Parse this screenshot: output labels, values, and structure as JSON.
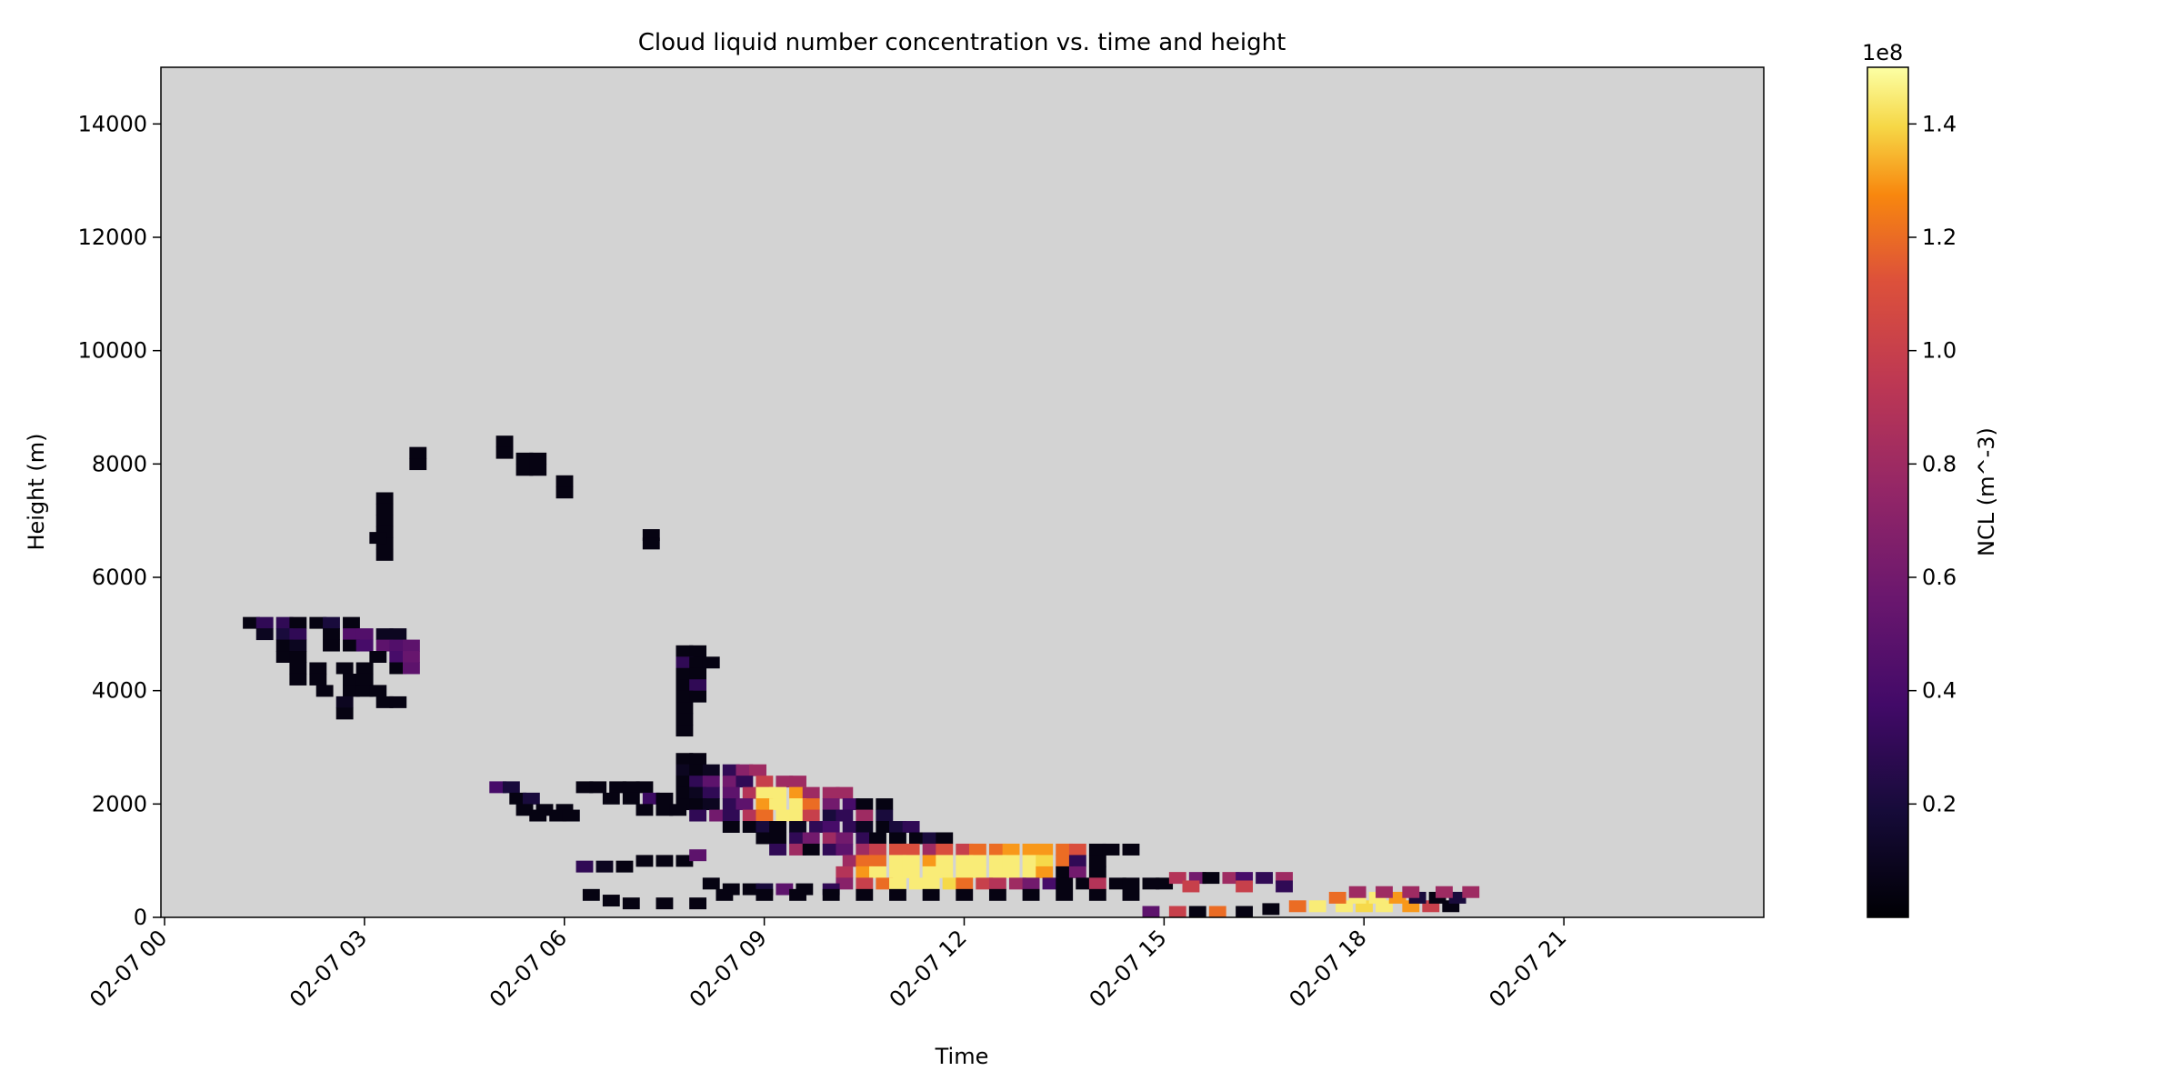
{
  "chart_data": {
    "type": "heatmap",
    "title": "Cloud liquid number concentration vs. time and height",
    "xlabel": "Time",
    "ylabel": "Height (m)",
    "x_range": [
      "02-07 00",
      "02-08 00"
    ],
    "x_ticks": [
      "02-07 00",
      "02-07 03",
      "02-07 06",
      "02-07 09",
      "02-07 12",
      "02-07 15",
      "02-07 18",
      "02-07 21"
    ],
    "ylim": [
      0,
      15000
    ],
    "y_ticks": [
      "0",
      "2000",
      "4000",
      "6000",
      "8000",
      "10000",
      "12000",
      "14000"
    ],
    "background_color": "#d3d3d3",
    "colormap": "inferno",
    "colorbar": {
      "label": "NCL (m^-3)",
      "offset_text": "1e8",
      "range": [
        0,
        1.5
      ],
      "ticks": [
        "0.2",
        "0.4",
        "0.6",
        "0.8",
        "1.0",
        "1.2",
        "1.4"
      ]
    },
    "cell_units": {
      "x": "hours since 02-07 00",
      "y": "m",
      "value": "1e8 m^-3"
    },
    "cells": [
      [
        1.3,
        5200,
        0.05
      ],
      [
        1.5,
        5200,
        0.3
      ],
      [
        1.8,
        5200,
        0.3
      ],
      [
        2.0,
        5200,
        0.05
      ],
      [
        2.3,
        5200,
        0.05
      ],
      [
        2.5,
        5200,
        0.2
      ],
      [
        2.8,
        5200,
        0.05
      ],
      [
        1.5,
        5000,
        0.1
      ],
      [
        1.8,
        5000,
        0.2
      ],
      [
        2.0,
        5000,
        0.3
      ],
      [
        2.5,
        5000,
        0.05
      ],
      [
        2.8,
        5000,
        0.45
      ],
      [
        3.0,
        5000,
        0.45
      ],
      [
        3.3,
        5000,
        0.1
      ],
      [
        3.5,
        5000,
        0.1
      ],
      [
        1.8,
        4800,
        0.05
      ],
      [
        2.0,
        4800,
        0.1
      ],
      [
        2.5,
        4800,
        0.05
      ],
      [
        2.8,
        4800,
        0.05
      ],
      [
        3.0,
        4800,
        0.4
      ],
      [
        3.3,
        4800,
        0.5
      ],
      [
        3.5,
        4800,
        0.45
      ],
      [
        3.7,
        4800,
        0.5
      ],
      [
        1.8,
        4600,
        0.05
      ],
      [
        2.0,
        4600,
        0.05
      ],
      [
        3.2,
        4600,
        0.05
      ],
      [
        3.5,
        4600,
        0.4
      ],
      [
        3.7,
        4600,
        0.55
      ],
      [
        2.0,
        4400,
        0.05
      ],
      [
        2.3,
        4400,
        0.05
      ],
      [
        2.7,
        4400,
        0.05
      ],
      [
        3.0,
        4400,
        0.05
      ],
      [
        3.5,
        4400,
        0.05
      ],
      [
        3.7,
        4400,
        0.5
      ],
      [
        2.0,
        4200,
        0.05
      ],
      [
        2.3,
        4200,
        0.05
      ],
      [
        2.8,
        4200,
        0.05
      ],
      [
        3.0,
        4200,
        0.05
      ],
      [
        2.4,
        4000,
        0.05
      ],
      [
        2.8,
        4000,
        0.05
      ],
      [
        3.0,
        4000,
        0.05
      ],
      [
        3.2,
        4000,
        0.05
      ],
      [
        2.7,
        3800,
        0.1
      ],
      [
        3.3,
        3800,
        0.05
      ],
      [
        3.5,
        3800,
        0.05
      ],
      [
        2.7,
        3600,
        0.05
      ],
      [
        3.8,
        8200,
        0.05
      ],
      [
        3.8,
        8000,
        0.05
      ],
      [
        5.1,
        8400,
        0.05
      ],
      [
        5.1,
        8200,
        0.05
      ],
      [
        5.4,
        8100,
        0.05
      ],
      [
        5.6,
        8100,
        0.05
      ],
      [
        5.4,
        7900,
        0.05
      ],
      [
        5.6,
        7900,
        0.05
      ],
      [
        6.0,
        7700,
        0.05
      ],
      [
        6.0,
        7500,
        0.05
      ],
      [
        3.3,
        7400,
        0.05
      ],
      [
        3.3,
        7200,
        0.05
      ],
      [
        3.3,
        7000,
        0.05
      ],
      [
        3.3,
        6800,
        0.05
      ],
      [
        3.3,
        6600,
        0.05
      ],
      [
        3.3,
        6400,
        0.05
      ],
      [
        3.2,
        6700,
        0.05
      ],
      [
        7.3,
        6750,
        0.05
      ],
      [
        7.3,
        6600,
        0.05
      ],
      [
        7.8,
        4700,
        0.05
      ],
      [
        8.0,
        4700,
        0.05
      ],
      [
        7.8,
        4500,
        0.3
      ],
      [
        8.0,
        4500,
        0.05
      ],
      [
        8.2,
        4500,
        0.05
      ],
      [
        7.8,
        4300,
        0.05
      ],
      [
        8.0,
        4300,
        0.05
      ],
      [
        7.8,
        4100,
        0.05
      ],
      [
        8.0,
        4100,
        0.3
      ],
      [
        7.8,
        3900,
        0.05
      ],
      [
        8.0,
        3900,
        0.05
      ],
      [
        7.8,
        3700,
        0.05
      ],
      [
        7.8,
        3500,
        0.05
      ],
      [
        7.8,
        3300,
        0.05
      ],
      [
        7.8,
        2800,
        0.05
      ],
      [
        8.0,
        2800,
        0.05
      ],
      [
        7.8,
        2600,
        0.1
      ],
      [
        8.0,
        2600,
        0.05
      ],
      [
        8.2,
        2600,
        0.1
      ],
      [
        8.5,
        2600,
        0.3
      ],
      [
        8.7,
        2600,
        0.7
      ],
      [
        8.9,
        2600,
        0.8
      ],
      [
        7.8,
        2400,
        0.05
      ],
      [
        8.0,
        2400,
        0.3
      ],
      [
        8.2,
        2400,
        0.5
      ],
      [
        8.5,
        2400,
        0.6
      ],
      [
        8.7,
        2400,
        0.3
      ],
      [
        9.0,
        2400,
        1.0
      ],
      [
        9.3,
        2400,
        0.8
      ],
      [
        9.5,
        2400,
        0.8
      ],
      [
        7.8,
        2200,
        0.05
      ],
      [
        8.0,
        2200,
        0.1
      ],
      [
        8.2,
        2200,
        0.3
      ],
      [
        8.5,
        2200,
        0.5
      ],
      [
        8.8,
        2200,
        0.9
      ],
      [
        9.0,
        2200,
        1.45
      ],
      [
        9.2,
        2200,
        1.45
      ],
      [
        9.5,
        2200,
        1.3
      ],
      [
        9.7,
        2200,
        0.8
      ],
      [
        10.0,
        2200,
        0.8
      ],
      [
        10.2,
        2200,
        0.8
      ],
      [
        7.8,
        2000,
        0.05
      ],
      [
        8.0,
        2000,
        0.05
      ],
      [
        8.2,
        2000,
        0.1
      ],
      [
        8.5,
        2000,
        0.3
      ],
      [
        8.7,
        2000,
        0.5
      ],
      [
        9.0,
        2000,
        1.3
      ],
      [
        9.2,
        2000,
        1.45
      ],
      [
        9.5,
        2000,
        1.45
      ],
      [
        9.7,
        2000,
        1.2
      ],
      [
        10.0,
        2000,
        0.6
      ],
      [
        10.3,
        2000,
        0.4
      ],
      [
        10.5,
        2000,
        0.05
      ],
      [
        10.8,
        2000,
        0.05
      ],
      [
        8.0,
        1800,
        0.3
      ],
      [
        8.3,
        1800,
        0.6
      ],
      [
        8.5,
        1800,
        0.3
      ],
      [
        8.8,
        1800,
        0.9
      ],
      [
        9.0,
        1800,
        1.2
      ],
      [
        9.3,
        1800,
        1.45
      ],
      [
        9.5,
        1800,
        1.45
      ],
      [
        9.7,
        1800,
        1.0
      ],
      [
        10.0,
        1800,
        0.2
      ],
      [
        10.2,
        1800,
        0.3
      ],
      [
        10.5,
        1800,
        0.8
      ],
      [
        10.8,
        1800,
        0.2
      ],
      [
        8.5,
        1600,
        0.05
      ],
      [
        8.8,
        1600,
        0.05
      ],
      [
        9.0,
        1600,
        0.2
      ],
      [
        9.2,
        1600,
        0.05
      ],
      [
        9.5,
        1600,
        0.1
      ],
      [
        9.8,
        1600,
        0.3
      ],
      [
        10.0,
        1600,
        0.4
      ],
      [
        10.3,
        1600,
        0.3
      ],
      [
        10.5,
        1600,
        0.1
      ],
      [
        10.8,
        1600,
        0.05
      ],
      [
        11.0,
        1600,
        0.2
      ],
      [
        11.2,
        1600,
        0.3
      ],
      [
        5.0,
        2300,
        0.4
      ],
      [
        5.2,
        2300,
        0.2
      ],
      [
        6.3,
        2300,
        0.05
      ],
      [
        6.5,
        2300,
        0.05
      ],
      [
        6.8,
        2300,
        0.05
      ],
      [
        7.0,
        2300,
        0.05
      ],
      [
        7.2,
        2300,
        0.05
      ],
      [
        5.3,
        2100,
        0.05
      ],
      [
        5.5,
        2100,
        0.2
      ],
      [
        6.7,
        2100,
        0.05
      ],
      [
        7.0,
        2100,
        0.05
      ],
      [
        7.3,
        2100,
        0.35
      ],
      [
        7.5,
        2100,
        0.05
      ],
      [
        5.4,
        1900,
        0.05
      ],
      [
        5.7,
        1900,
        0.05
      ],
      [
        6.0,
        1900,
        0.05
      ],
      [
        7.2,
        1900,
        0.05
      ],
      [
        7.5,
        1900,
        0.05
      ],
      [
        7.7,
        1900,
        0.05
      ],
      [
        5.6,
        1800,
        0.05
      ],
      [
        5.9,
        1800,
        0.05
      ],
      [
        6.1,
        1800,
        0.05
      ],
      [
        9.0,
        1400,
        0.05
      ],
      [
        9.2,
        1400,
        0.05
      ],
      [
        9.5,
        1400,
        0.3
      ],
      [
        9.7,
        1400,
        0.6
      ],
      [
        10.0,
        1400,
        0.8
      ],
      [
        10.2,
        1400,
        0.6
      ],
      [
        10.5,
        1400,
        0.3
      ],
      [
        10.7,
        1400,
        0.05
      ],
      [
        11.0,
        1400,
        0.05
      ],
      [
        11.3,
        1400,
        0.05
      ],
      [
        11.5,
        1400,
        0.2
      ],
      [
        11.7,
        1400,
        0.05
      ],
      [
        9.2,
        1200,
        0.3
      ],
      [
        9.5,
        1200,
        0.8
      ],
      [
        9.7,
        1200,
        0.05
      ],
      [
        10.0,
        1200,
        0.3
      ],
      [
        10.2,
        1200,
        0.5
      ],
      [
        10.5,
        1200,
        0.8
      ],
      [
        10.7,
        1200,
        1.0
      ],
      [
        11.0,
        1200,
        1.1
      ],
      [
        11.2,
        1200,
        1.1
      ],
      [
        11.5,
        1200,
        0.8
      ],
      [
        11.7,
        1200,
        1.1
      ],
      [
        12.0,
        1200,
        1.0
      ],
      [
        12.2,
        1200,
        1.2
      ],
      [
        12.5,
        1200,
        1.2
      ],
      [
        12.7,
        1200,
        1.3
      ],
      [
        13.0,
        1200,
        1.3
      ],
      [
        13.2,
        1200,
        1.3
      ],
      [
        13.5,
        1200,
        1.2
      ],
      [
        13.7,
        1200,
        1.1
      ],
      [
        14.0,
        1200,
        0.05
      ],
      [
        14.2,
        1200,
        0.05
      ],
      [
        14.5,
        1200,
        0.05
      ],
      [
        10.3,
        1000,
        0.8
      ],
      [
        10.5,
        1000,
        1.2
      ],
      [
        10.7,
        1000,
        1.2
      ],
      [
        11.0,
        1000,
        1.45
      ],
      [
        11.2,
        1000,
        1.45
      ],
      [
        11.5,
        1000,
        1.3
      ],
      [
        11.7,
        1000,
        1.45
      ],
      [
        12.0,
        1000,
        1.45
      ],
      [
        12.2,
        1000,
        1.45
      ],
      [
        12.5,
        1000,
        1.45
      ],
      [
        12.7,
        1000,
        1.45
      ],
      [
        13.0,
        1000,
        1.45
      ],
      [
        13.2,
        1000,
        1.4
      ],
      [
        13.5,
        1000,
        1.2
      ],
      [
        13.7,
        1000,
        0.3
      ],
      [
        14.0,
        1000,
        0.05
      ],
      [
        10.2,
        800,
        0.9
      ],
      [
        10.5,
        800,
        1.3
      ],
      [
        10.7,
        800,
        1.45
      ],
      [
        11.0,
        800,
        1.45
      ],
      [
        11.2,
        800,
        1.45
      ],
      [
        11.5,
        800,
        1.45
      ],
      [
        11.7,
        800,
        1.45
      ],
      [
        12.0,
        800,
        1.45
      ],
      [
        12.2,
        800,
        1.45
      ],
      [
        12.5,
        800,
        1.45
      ],
      [
        12.7,
        800,
        1.45
      ],
      [
        13.0,
        800,
        1.45
      ],
      [
        13.2,
        800,
        1.3
      ],
      [
        13.5,
        800,
        0.05
      ],
      [
        13.7,
        800,
        0.6
      ],
      [
        14.0,
        800,
        0.05
      ],
      [
        10.2,
        600,
        0.7
      ],
      [
        10.5,
        600,
        1.0
      ],
      [
        10.8,
        600,
        1.2
      ],
      [
        11.0,
        600,
        1.45
      ],
      [
        11.3,
        600,
        1.45
      ],
      [
        11.5,
        600,
        1.45
      ],
      [
        11.8,
        600,
        1.4
      ],
      [
        12.0,
        600,
        1.2
      ],
      [
        12.3,
        600,
        1.0
      ],
      [
        12.5,
        600,
        0.9
      ],
      [
        12.8,
        600,
        0.8
      ],
      [
        13.0,
        600,
        0.6
      ],
      [
        13.3,
        600,
        0.4
      ],
      [
        13.5,
        600,
        0.05
      ],
      [
        13.8,
        600,
        0.05
      ],
      [
        14.0,
        600,
        0.9
      ],
      [
        14.3,
        600,
        0.05
      ],
      [
        14.5,
        600,
        0.05
      ],
      [
        14.8,
        600,
        0.05
      ],
      [
        15.0,
        600,
        0.05
      ],
      [
        15.2,
        700,
        0.9
      ],
      [
        15.5,
        700,
        0.6
      ],
      [
        15.7,
        700,
        0.05
      ],
      [
        16.0,
        700,
        0.8
      ],
      [
        16.2,
        700,
        0.4
      ],
      [
        16.5,
        700,
        0.3
      ],
      [
        16.8,
        700,
        0.8
      ],
      [
        15.4,
        550,
        1.0
      ],
      [
        16.2,
        550,
        1.0
      ],
      [
        16.8,
        550,
        0.3
      ],
      [
        6.3,
        900,
        0.3
      ],
      [
        6.6,
        900,
        0.1
      ],
      [
        6.9,
        900,
        0.05
      ],
      [
        7.2,
        1000,
        0.05
      ],
      [
        7.5,
        1000,
        0.05
      ],
      [
        7.8,
        1000,
        0.05
      ],
      [
        8.0,
        1100,
        0.5
      ],
      [
        8.2,
        600,
        0.05
      ],
      [
        8.5,
        500,
        0.05
      ],
      [
        8.8,
        500,
        0.05
      ],
      [
        9.0,
        500,
        0.2
      ],
      [
        9.3,
        500,
        0.5
      ],
      [
        9.6,
        500,
        0.05
      ],
      [
        10.0,
        500,
        0.3
      ],
      [
        6.4,
        400,
        0.05
      ],
      [
        6.7,
        300,
        0.05
      ],
      [
        7.0,
        250,
        0.05
      ],
      [
        7.5,
        250,
        0.05
      ],
      [
        8.0,
        250,
        0.05
      ],
      [
        8.4,
        400,
        0.05
      ],
      [
        9.0,
        400,
        0.05
      ],
      [
        9.5,
        400,
        0.05
      ],
      [
        10.0,
        400,
        0.05
      ],
      [
        10.5,
        400,
        0.05
      ],
      [
        11.0,
        400,
        0.05
      ],
      [
        11.5,
        400,
        0.05
      ],
      [
        12.0,
        400,
        0.05
      ],
      [
        12.5,
        400,
        0.05
      ],
      [
        13.0,
        400,
        0.05
      ],
      [
        13.5,
        400,
        0.05
      ],
      [
        14.0,
        400,
        0.05
      ],
      [
        14.5,
        400,
        0.05
      ],
      [
        14.8,
        100,
        0.5
      ],
      [
        15.2,
        100,
        1.0
      ],
      [
        15.5,
        100,
        0.05
      ],
      [
        15.8,
        100,
        1.2
      ],
      [
        16.2,
        100,
        0.05
      ],
      [
        16.6,
        150,
        0.05
      ],
      [
        17.0,
        200,
        1.2
      ],
      [
        17.3,
        200,
        1.45
      ],
      [
        17.7,
        200,
        1.45
      ],
      [
        18.0,
        200,
        1.4
      ],
      [
        18.3,
        200,
        1.45
      ],
      [
        18.7,
        200,
        1.3
      ],
      [
        19.0,
        200,
        1.0
      ],
      [
        19.3,
        200,
        0.05
      ],
      [
        17.6,
        350,
        1.2
      ],
      [
        17.9,
        350,
        1.45
      ],
      [
        18.2,
        350,
        1.45
      ],
      [
        18.5,
        350,
        1.3
      ],
      [
        18.8,
        350,
        0.2
      ],
      [
        19.1,
        350,
        0.05
      ],
      [
        19.4,
        350,
        0.2
      ],
      [
        17.9,
        450,
        0.8
      ],
      [
        18.3,
        450,
        0.8
      ],
      [
        18.7,
        450,
        0.8
      ],
      [
        19.2,
        450,
        0.8
      ],
      [
        19.6,
        450,
        0.8
      ]
    ]
  }
}
